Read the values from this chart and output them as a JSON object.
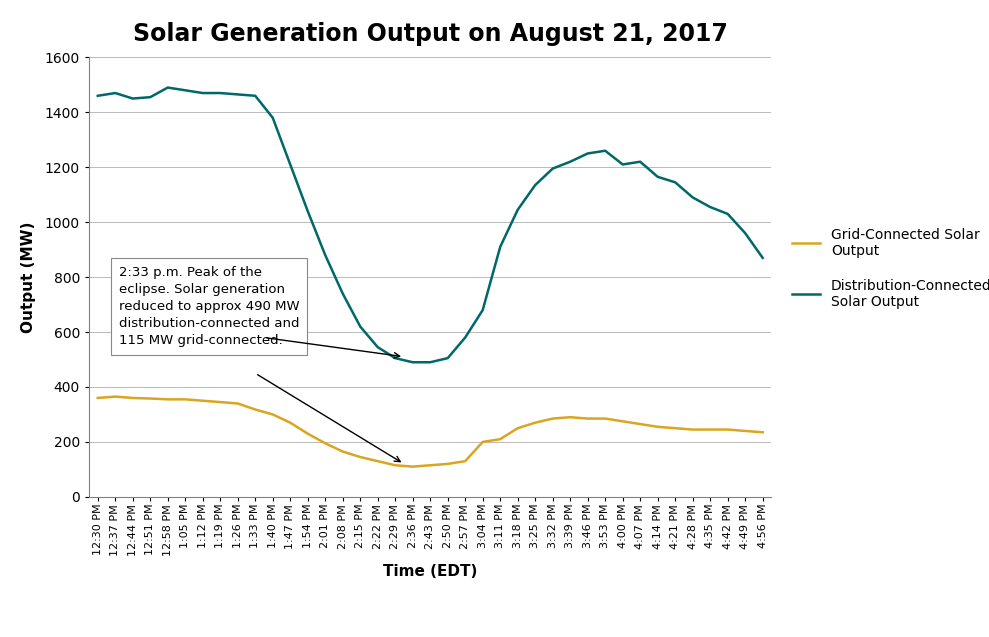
{
  "title": "Solar Generation Output on August 21, 2017",
  "xlabel": "Time (EDT)",
  "ylabel": "Output (MW)",
  "ylim": [
    0,
    1600
  ],
  "yticks": [
    0,
    200,
    400,
    600,
    800,
    1000,
    1200,
    1400,
    1600
  ],
  "background_color": "#ffffff",
  "title_fontsize": 17,
  "title_fontweight": "bold",
  "axis_label_fontsize": 11,
  "tick_label_fontsize": 8,
  "time_labels": [
    "12:30 PM",
    "12:37 PM",
    "12:44 PM",
    "12:51 PM",
    "12:58 PM",
    "1:05 PM",
    "1:12 PM",
    "1:19 PM",
    "1:26 PM",
    "1:33 PM",
    "1:40 PM",
    "1:47 PM",
    "1:54 PM",
    "2:01 PM",
    "2:08 PM",
    "2:15 PM",
    "2:22 PM",
    "2:29 PM",
    "2:36 PM",
    "2:43 PM",
    "2:50 PM",
    "2:57 PM",
    "3:04 PM",
    "3:11 PM",
    "3:18 PM",
    "3:25 PM",
    "3:32 PM",
    "3:39 PM",
    "3:46 PM",
    "3:53 PM",
    "4:00 PM",
    "4:07 PM",
    "4:14 PM",
    "4:21 PM",
    "4:28 PM",
    "4:35 PM",
    "4:42 PM",
    "4:49 PM",
    "4:56 PM"
  ],
  "grid_connected_values": [
    360,
    365,
    360,
    358,
    355,
    355,
    350,
    345,
    340,
    318,
    300,
    270,
    230,
    195,
    165,
    145,
    130,
    115,
    110,
    115,
    120,
    130,
    200,
    210,
    250,
    270,
    285,
    290,
    285,
    285,
    275,
    265,
    255,
    250,
    245,
    245,
    245,
    240,
    235
  ],
  "distribution_connected_values": [
    1460,
    1470,
    1450,
    1455,
    1490,
    1480,
    1470,
    1470,
    1465,
    1460,
    1380,
    1210,
    1040,
    880,
    740,
    620,
    545,
    505,
    490,
    490,
    505,
    580,
    680,
    910,
    1045,
    1135,
    1195,
    1220,
    1250,
    1260,
    1210,
    1220,
    1165,
    1145,
    1090,
    1055,
    1030,
    960,
    870
  ],
  "grid_color": "#DAA520",
  "distribution_color": "#006868",
  "annotation_text": "2:33 p.m. Peak of the\neclipse. Solar generation\nreduced to approx 490 MW\ndistribution-connected and\n115 MW grid-connected.",
  "legend_grid_label": "Grid-Connected Solar\nOutput",
  "legend_dist_label": "Distribution-Connected\nSolar Output"
}
